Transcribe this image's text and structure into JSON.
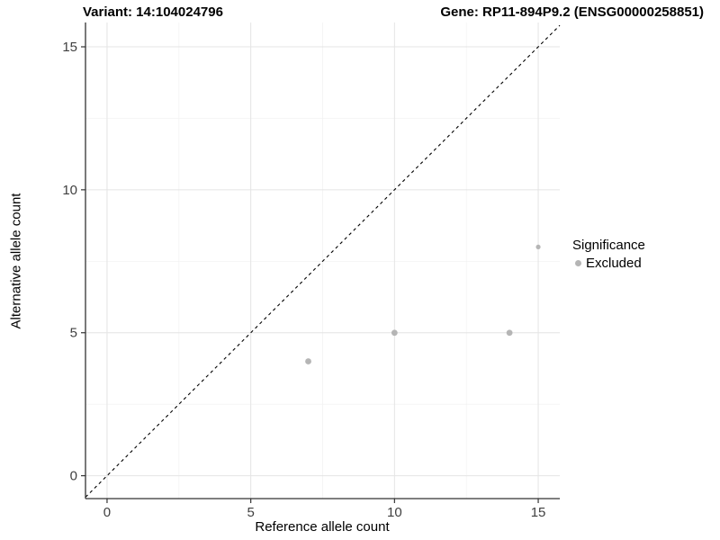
{
  "chart_data": {
    "type": "scatter",
    "title_left": "Variant: 14:104024796",
    "title_right": "Gene: RP11-894P9.2 (ENSG00000258851)",
    "xlabel": "Reference allele count",
    "ylabel": "Alternative allele count",
    "xlim": [
      -0.75,
      15.75
    ],
    "ylim": [
      -0.8,
      15.85
    ],
    "x_ticks": [
      0,
      5,
      10,
      15
    ],
    "y_ticks": [
      0,
      5,
      10,
      15
    ],
    "x_minor_ticks": [
      2.5,
      7.5,
      12.5
    ],
    "y_minor_ticks": [
      2.5,
      7.5,
      12.5
    ],
    "grid": "on",
    "identity_line": {
      "slope": 1,
      "intercept": 0,
      "style": "dashed",
      "color": "#000000"
    },
    "series": [
      {
        "name": "Excluded",
        "color": "#b5b5b5",
        "points": [
          {
            "x": 7,
            "y": 4,
            "r": 3.4
          },
          {
            "x": 10,
            "y": 5,
            "r": 3.4
          },
          {
            "x": 14,
            "y": 5,
            "r": 3.4
          },
          {
            "x": 15,
            "y": 8,
            "r": 2.6
          }
        ]
      }
    ],
    "legend": {
      "position": "right",
      "title": "Significance",
      "items": [
        {
          "label": "Excluded",
          "color": "#b5b5b5"
        }
      ]
    },
    "colors": {
      "grid_major": "#e4e4e4",
      "grid_minor": "#f1f1f1",
      "axis_line": "#333333",
      "tick_label": "#404040"
    }
  }
}
